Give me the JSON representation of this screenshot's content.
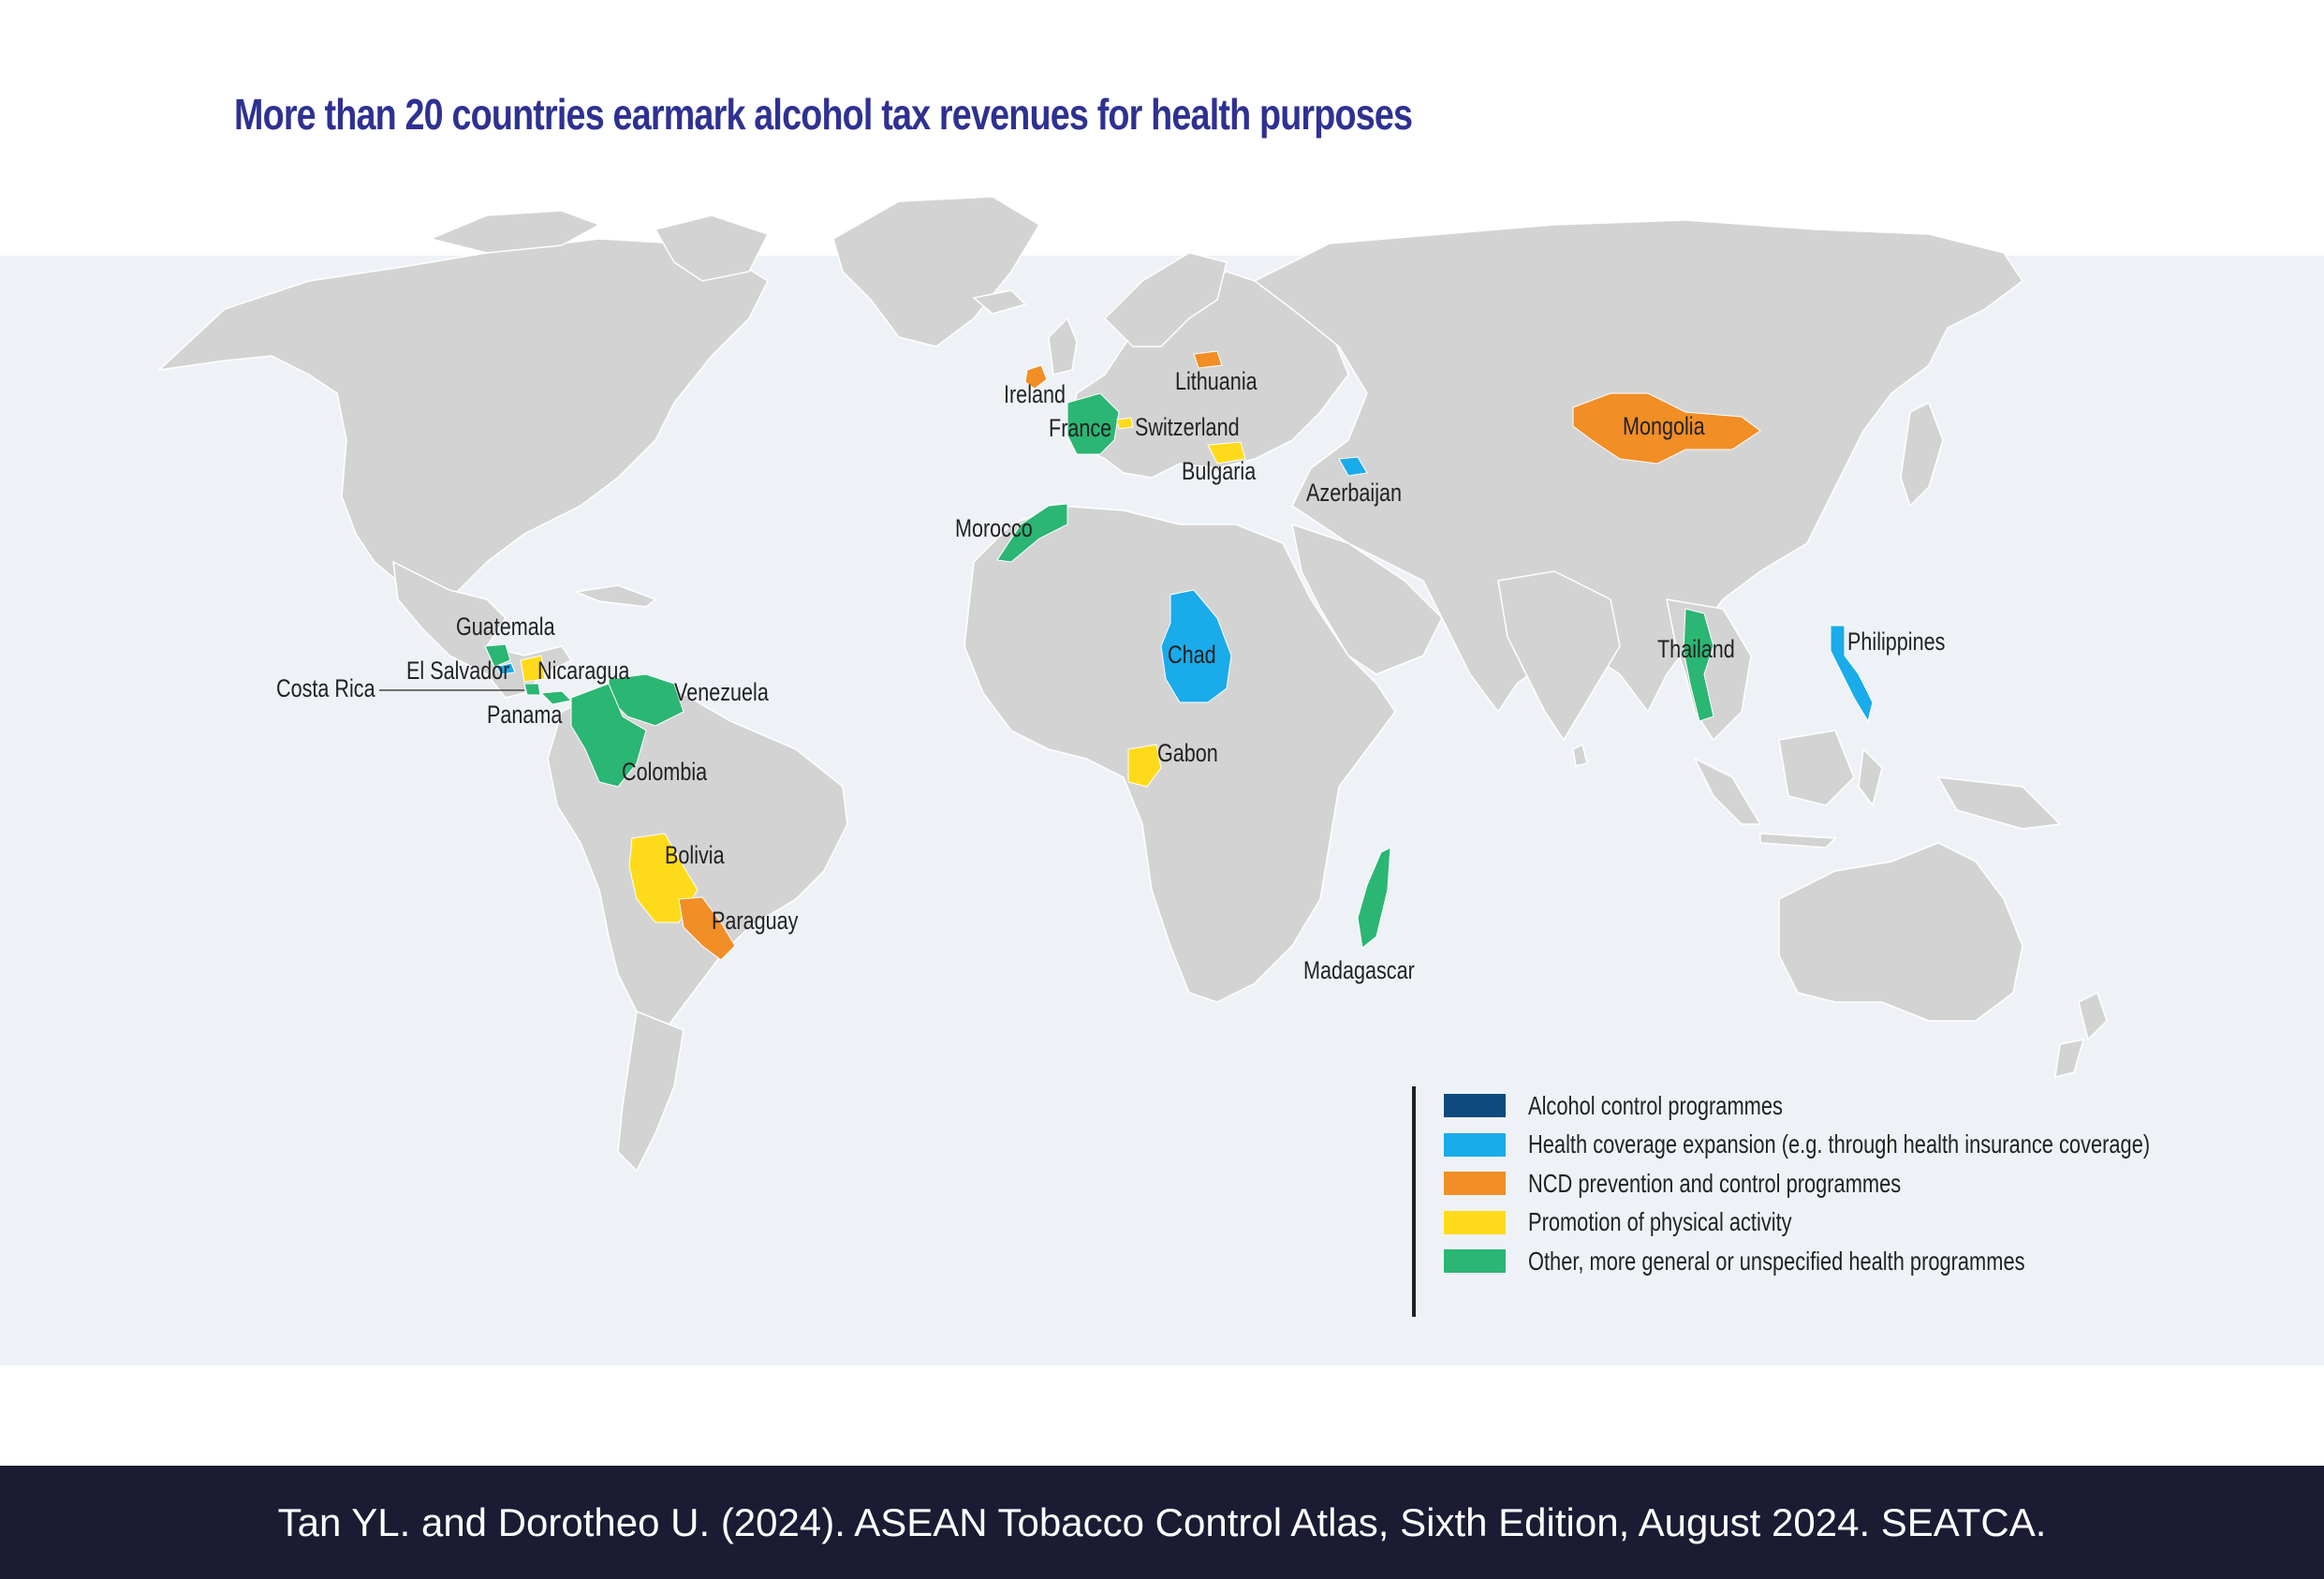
{
  "title": "More than 20 countries earmark alcohol tax revenues for health purposes",
  "colors": {
    "ocean": "#eef2f6",
    "land": "#d3d3d3",
    "border": "#ffffff",
    "alcohol_control": "#0e4a7e",
    "health_coverage": "#1aabea",
    "ncd": "#f18e26",
    "physical_activity": "#fedb1a",
    "other_health": "#2bb673"
  },
  "legend": [
    {
      "key": "alcohol_control",
      "label": "Alcohol control programmes"
    },
    {
      "key": "health_coverage",
      "label": "Health coverage expansion (e.g. through health insurance coverage)"
    },
    {
      "key": "ncd",
      "label": "NCD prevention and control programmes"
    },
    {
      "key": "physical_activity",
      "label": "Promotion of physical activity"
    },
    {
      "key": "other_health",
      "label": "Other, more general or unspecified health programmes"
    }
  ],
  "countries": {
    "ireland": {
      "name": "Ireland",
      "category": "ncd"
    },
    "lithuania": {
      "name": "Lithuania",
      "category": "ncd"
    },
    "mongolia": {
      "name": "Mongolia",
      "category": "ncd"
    },
    "france": {
      "name": "France",
      "category": "other_health"
    },
    "switzerland": {
      "name": "Switzerland",
      "category": "physical_activity"
    },
    "bulgaria": {
      "name": "Bulgaria",
      "category": "physical_activity"
    },
    "azerbaijan": {
      "name": "Azerbaijan",
      "category": "health_coverage"
    },
    "morocco": {
      "name": "Morocco",
      "category": "other_health"
    },
    "chad": {
      "name": "Chad",
      "category": "health_coverage"
    },
    "gabon": {
      "name": "Gabon",
      "category": "physical_activity"
    },
    "madagascar": {
      "name": "Madagascar",
      "category": "other_health"
    },
    "thailand": {
      "name": "Thailand",
      "category": "other_health"
    },
    "philippines": {
      "name": "Philippines",
      "category": "health_coverage"
    },
    "guatemala": {
      "name": "Guatemala",
      "category": "other_health"
    },
    "el_salvador": {
      "name": "El Salvador",
      "category": "health_coverage"
    },
    "nicaragua": {
      "name": "Nicaragua",
      "category": "physical_activity"
    },
    "costa_rica": {
      "name": "Costa Rica",
      "category": "other_health"
    },
    "panama": {
      "name": "Panama",
      "category": "other_health"
    },
    "venezuela": {
      "name": "Venezuela",
      "category": "other_health"
    },
    "colombia": {
      "name": "Colombia",
      "category": "other_health"
    },
    "bolivia": {
      "name": "Bolivia",
      "category": "physical_activity"
    },
    "paraguay": {
      "name": "Paraguay",
      "category": "ncd"
    }
  },
  "footer": "Tan YL. and Dorotheo U. (2024). ASEAN Tobacco Control Atlas, Sixth Edition, August 2024. SEATCA."
}
